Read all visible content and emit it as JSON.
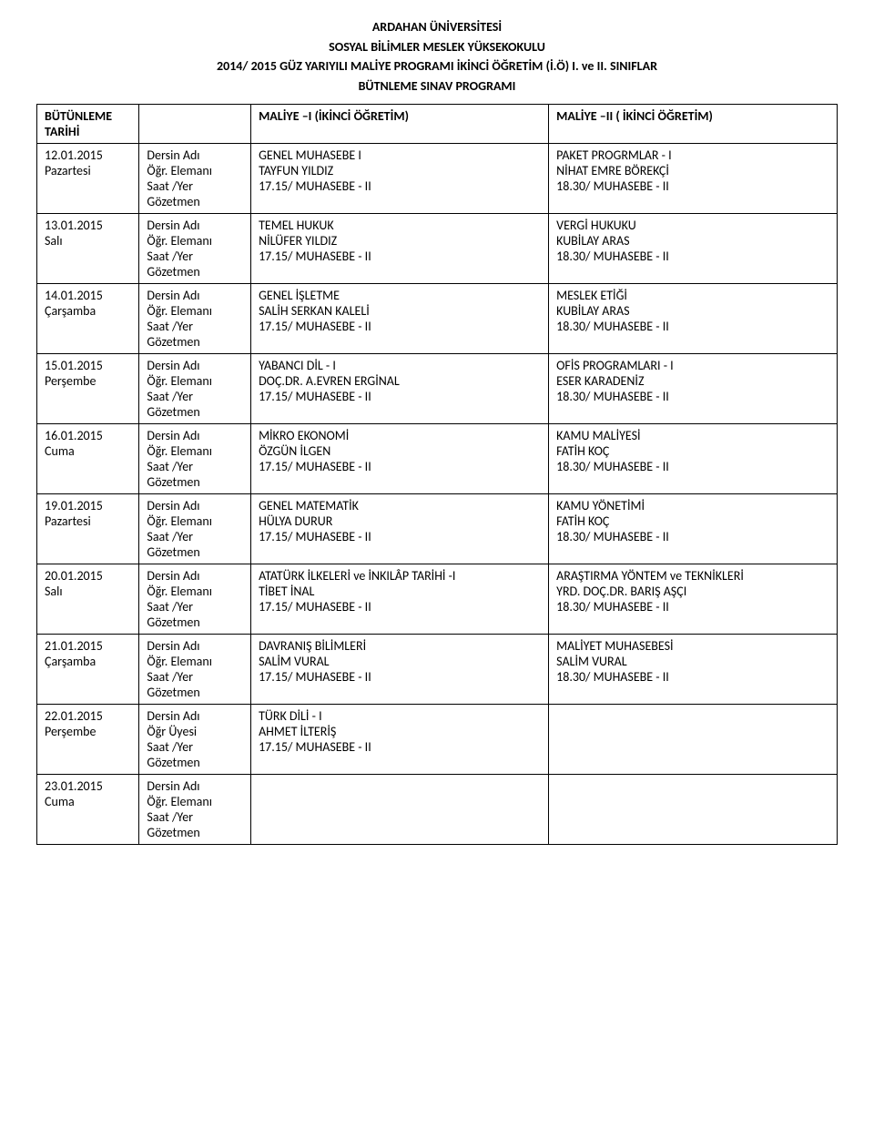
{
  "header": {
    "line1": "ARDAHAN ÜNİVERSİTESİ",
    "line2": "SOSYAL BİLİMLER MESLEK YÜKSEKOKULU",
    "line3": "2014/ 2015 GÜZ YARIYILI MALİYE PROGRAMI İKİNCİ ÖĞRETİM (İ.Ö) I. ve II. SINIFLAR",
    "line4": "BÜTNLEME SINAV PROGRAMI"
  },
  "tableHead": {
    "c0": "BÜTÜNLEME TARİHİ",
    "c2": "MALİYE –I   (İKİNCİ ÖĞRETİM)",
    "c3": "MALİYE –II  ( İKİNCİ ÖĞRETİM)"
  },
  "labels": {
    "ders": "Dersin Adı",
    "ogr": "Öğr. Elemanı",
    "ogrUyesi": "Öğr Üyesi",
    "saat": "Saat /Yer",
    "gozetmen": "Gözetmen"
  },
  "rows": [
    {
      "date": "12.01.2015",
      "day": "Pazartesi",
      "ogrLabelKey": "ogr",
      "col1": {
        "ders": "GENEL MUHASEBE I",
        "ogr": "TAYFUN YILDIZ",
        "saat": "17.15/ MUHASEBE - II",
        "goz": ""
      },
      "col2": {
        "ders": "PAKET PROGRMLAR - I",
        "ogr": " NİHAT EMRE BÖREKÇİ",
        "saat": "18.30/  MUHASEBE - II",
        "goz": ""
      }
    },
    {
      "date": "13.01.2015",
      "day": "Salı",
      "ogrLabelKey": "ogr",
      "col1": {
        "ders": "TEMEL HUKUK",
        "ogr": "NİLÜFER YILDIZ",
        "saat": "17.15/ MUHASEBE - II",
        "goz": ""
      },
      "col2": {
        "ders": "VERGİ HUKUKU",
        "ogr": "KUBİLAY ARAS",
        "saat": "18.30/  MUHASEBE - II",
        "goz": ""
      }
    },
    {
      "date": "14.01.2015",
      "day": "Çarşamba",
      "ogrLabelKey": "ogr",
      "col1": {
        "ders": "GENEL İŞLETME",
        "ogr": "SALİH SERKAN KALELİ",
        "saat": "17.15/ MUHASEBE - II",
        "goz": ""
      },
      "col2": {
        "ders": "MESLEK ETİĞİ",
        "ogr": "KUBİLAY ARAS",
        "saat": "18.30/  MUHASEBE - II",
        "goz": ""
      }
    },
    {
      "date": "15.01.2015",
      "day": "Perşembe",
      "ogrLabelKey": "ogr",
      "col1": {
        "ders": "YABANCI DİL - I",
        "ogr": "DOÇ.DR. A.EVREN ERGİNAL",
        "saat": "17.15/ MUHASEBE - II",
        "goz": ""
      },
      "col2": {
        "ders": "OFİS PROGRAMLARI - I",
        "ogr": "ESER KARADENİZ",
        "saat": "18.30/  MUHASEBE - II",
        "goz": ""
      }
    },
    {
      "date": "16.01.2015",
      "day": "Cuma",
      "ogrLabelKey": "ogr",
      "col1": {
        "ders": "MİKRO EKONOMİ",
        "ogr": "ÖZGÜN İLGEN",
        "saat": "17.15/ MUHASEBE - II",
        "goz": ""
      },
      "col2": {
        "ders": "KAMU MALİYESİ",
        "ogr": "FATİH KOÇ",
        "saat": "18.30/  MUHASEBE - II",
        "goz": ""
      }
    },
    {
      "date": "19.01.2015",
      "day": "Pazartesi",
      "ogrLabelKey": "ogr",
      "col1": {
        "ders": "GENEL MATEMATİK",
        "ogr": "HÜLYA DURUR",
        "saat": "17.15/ MUHASEBE - II",
        "goz": ""
      },
      "col2": {
        "ders": "KAMU YÖNETİMİ",
        "ogr": "FATİH KOÇ",
        "saat": "18.30/  MUHASEBE - II",
        "goz": ""
      }
    },
    {
      "date": "20.01.2015",
      "day": "Salı",
      "ogrLabelKey": "ogr",
      "col1": {
        "ders": "ATATÜRK İLKELERİ ve İNKILÂP TARİHİ -I",
        "ogr": "TİBET İNAL",
        "saat": "17.15/ MUHASEBE - II",
        "goz": ""
      },
      "col2": {
        "ders": "ARAŞTIRMA YÖNTEM ve TEKNİKLERİ",
        "ogr": "YRD. DOÇ.DR. BARIŞ AŞÇI",
        "saat": "18.30/  MUHASEBE - II",
        "goz": ""
      }
    },
    {
      "date": "21.01.2015",
      "day": "Çarşamba",
      "ogrLabelKey": "ogr",
      "col1": {
        "ders": "DAVRANIŞ BİLİMLERİ",
        "ogr": "SALİM VURAL",
        "saat": "17.15/ MUHASEBE - II",
        "goz": ""
      },
      "col2": {
        "ders": "MALİYET MUHASEBESİ",
        "ogr": "SALİM VURAL",
        "saat": "18.30/  MUHASEBE - II",
        "goz": ""
      }
    },
    {
      "date": "22.01.2015",
      "day": "Perşembe",
      "ogrLabelKey": "ogrUyesi",
      "col1": {
        "ders": "TÜRK DİLİ - I",
        "ogr": "AHMET İLTERİŞ",
        "saat": "17.15/ MUHASEBE - II",
        "goz": ""
      },
      "col2": {
        "ders": "",
        "ogr": "",
        "saat": "",
        "goz": ""
      }
    },
    {
      "date": "23.01.2015",
      "day": "Cuma",
      "ogrLabelKey": "ogr",
      "col1": {
        "ders": "",
        "ogr": "",
        "saat": "",
        "goz": ""
      },
      "col2": {
        "ders": "",
        "ogr": "",
        "saat": "",
        "goz": ""
      }
    }
  ]
}
